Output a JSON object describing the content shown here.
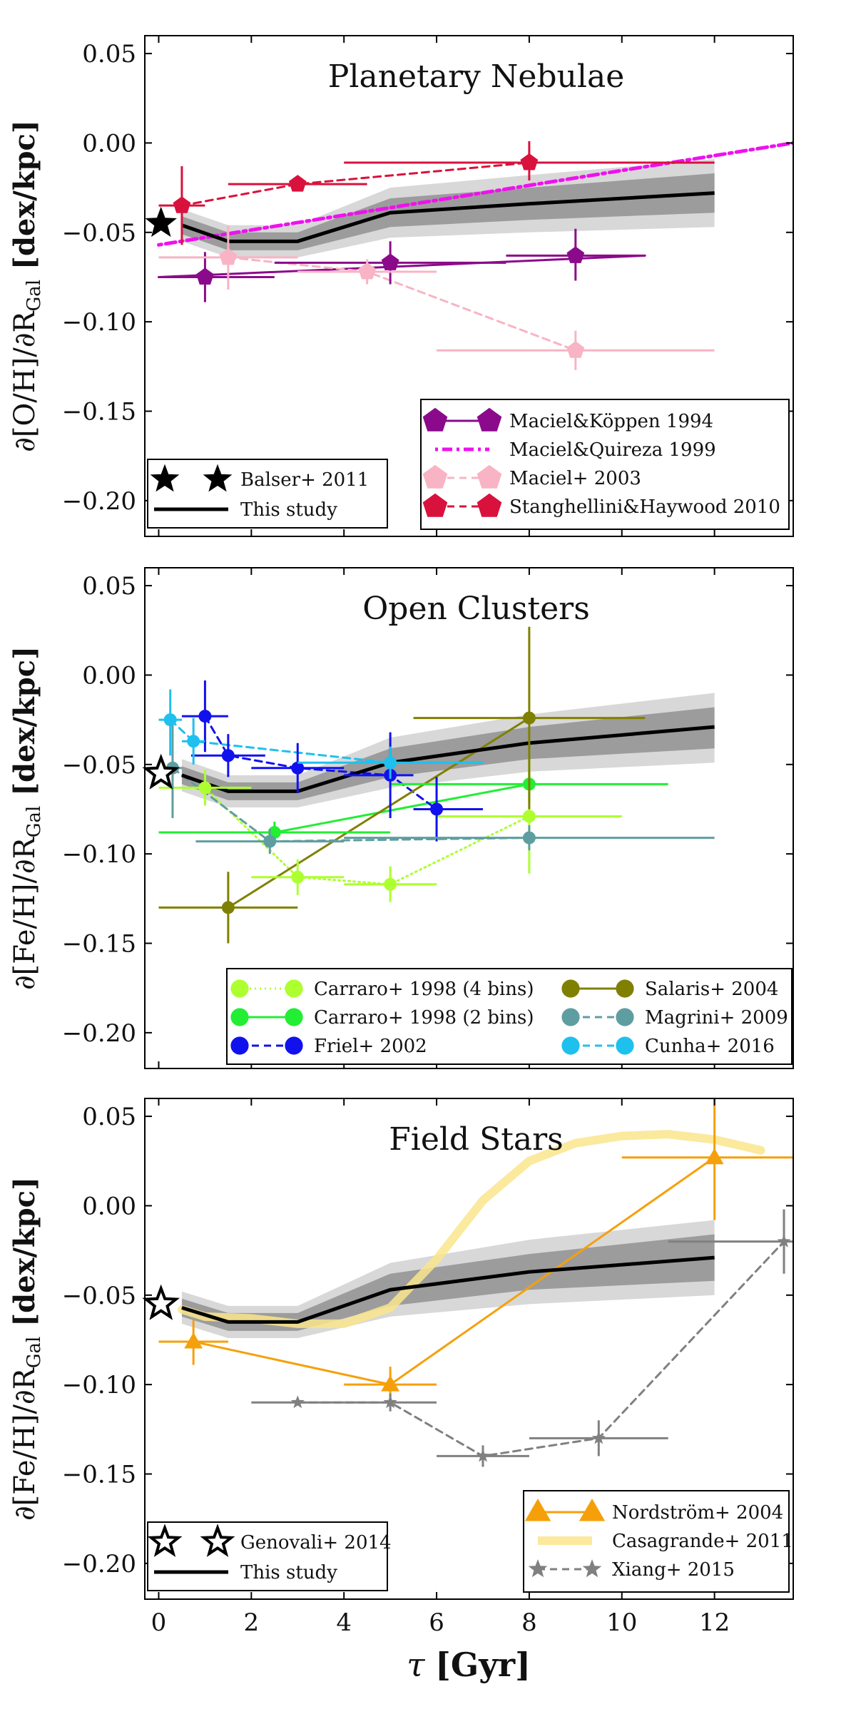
{
  "xaxis": {
    "label_sym": "τ",
    "label_text": "[Gyr]",
    "range": [
      -0.3,
      13.7
    ],
    "ticks": [
      0,
      2,
      4,
      6,
      8,
      10,
      12
    ],
    "tick_labels": [
      "0",
      "2",
      "4",
      "6",
      "8",
      "10",
      "12"
    ]
  },
  "chart_data": [
    {
      "type": "line",
      "title": "Planetary Nebulae",
      "ylabel_main": "∂[O/H]/∂R",
      "ylabel_sub": "Gal",
      "ylabel_unit": "[dex/kpc]",
      "ylim": [
        -0.22,
        0.06
      ],
      "yticks": [
        0.05,
        0.0,
        -0.05,
        -0.1,
        -0.15,
        -0.2
      ],
      "ytick_labels": [
        "0.05",
        "0.00",
        "−0.05",
        "−0.10",
        "−0.15",
        "−0.20"
      ],
      "band": {
        "x": [
          0.5,
          1.5,
          3,
          5,
          8,
          12
        ],
        "median": [
          -0.046,
          -0.055,
          -0.055,
          -0.039,
          -0.034,
          -0.028
        ],
        "inner": [
          [
            -0.051,
            -0.041
          ],
          [
            -0.06,
            -0.05
          ],
          [
            -0.06,
            -0.05
          ],
          [
            -0.047,
            -0.031
          ],
          [
            -0.043,
            -0.025
          ],
          [
            -0.039,
            -0.017
          ]
        ],
        "outer": [
          [
            -0.055,
            -0.037
          ],
          [
            -0.064,
            -0.046
          ],
          [
            -0.064,
            -0.046
          ],
          [
            -0.053,
            -0.025
          ],
          [
            -0.05,
            -0.018
          ],
          [
            -0.047,
            -0.009
          ]
        ]
      },
      "star": {
        "x": 0.05,
        "y": -0.045,
        "filled": true
      },
      "series": [
        {
          "name": "Maciel&Köppen 1994",
          "color": "#8b0a8b",
          "dash": "none",
          "width": 3,
          "marker": "pentagon",
          "points": [
            {
              "x": 1,
              "y": -0.075,
              "xl": 0,
              "xh": 2.5,
              "yl": -0.089,
              "yh": -0.061
            },
            {
              "x": 5,
              "y": -0.067,
              "xl": 2.5,
              "xh": 7.5,
              "yl": -0.079,
              "yh": -0.055
            },
            {
              "x": 9,
              "y": -0.063,
              "xl": 7.5,
              "xh": 10.5,
              "yl": -0.077,
              "yh": -0.048
            }
          ],
          "line": [
            [
              0,
              -0.075
            ],
            [
              10.5,
              -0.063
            ]
          ]
        },
        {
          "name": "Maciel&Quireza 1999",
          "color": "#ee11ee",
          "dash": "4,6,14,6",
          "width": 5,
          "marker": "none",
          "line": [
            [
              0,
              -0.057
            ],
            [
              13.7,
              0.0
            ]
          ]
        },
        {
          "name": "Maciel+ 2003",
          "color": "#f8b4c4",
          "dash": "10,7",
          "width": 3,
          "marker": "pentagon",
          "points": [
            {
              "x": 1.5,
              "y": -0.064,
              "xl": 0,
              "xh": 3,
              "yl": -0.082,
              "yh": -0.046
            },
            {
              "x": 4.5,
              "y": -0.072,
              "xl": 3,
              "xh": 6,
              "yl": -0.079,
              "yh": -0.065
            },
            {
              "x": 9,
              "y": -0.116,
              "xl": 6,
              "xh": 12,
              "yl": -0.127,
              "yh": -0.105
            }
          ],
          "line": [
            [
              1.5,
              -0.064
            ],
            [
              4.5,
              -0.072
            ],
            [
              9,
              -0.116
            ]
          ]
        },
        {
          "name": "Stanghellini&Haywood 2010",
          "color": "#d8123d",
          "dash": "10,7",
          "width": 3,
          "marker": "pentagon",
          "points": [
            {
              "x": 0.5,
              "y": -0.035,
              "xl": 0,
              "xh": 1,
              "yl": -0.057,
              "yh": -0.013
            },
            {
              "x": 3,
              "y": -0.023,
              "xl": 1.5,
              "xh": 4.5,
              "yl": -0.027,
              "yh": -0.019
            },
            {
              "x": 8,
              "y": -0.011,
              "xl": 4,
              "xh": 12,
              "yl": -0.021,
              "yh": 0.001
            }
          ],
          "line": [
            [
              0.5,
              -0.035
            ],
            [
              3,
              -0.023
            ],
            [
              8,
              -0.011
            ]
          ]
        }
      ],
      "legend_left": [
        {
          "label": "Balser+ 2011",
          "kind": "star-filled"
        },
        {
          "label": "This study",
          "kind": "line-black"
        }
      ],
      "legend_right": [
        {
          "label": "Maciel&Köppen 1994",
          "series": 0
        },
        {
          "label": "Maciel&Quireza 1999",
          "series": 1
        },
        {
          "label": "Maciel+ 2003",
          "series": 2
        },
        {
          "label": "Stanghellini&Haywood 2010",
          "series": 3
        }
      ]
    },
    {
      "type": "line",
      "title": "Open Clusters",
      "ylabel_main": "∂[Fe/H]/∂R",
      "ylabel_sub": "Gal",
      "ylabel_unit": "[dex/kpc]",
      "ylim": [
        -0.22,
        0.06
      ],
      "yticks": [
        0.05,
        0.0,
        -0.05,
        -0.1,
        -0.15,
        -0.2
      ],
      "ytick_labels": [
        "0.05",
        "0.00",
        "−0.05",
        "−0.10",
        "−0.15",
        "−0.20"
      ],
      "band": {
        "x": [
          0.5,
          1.5,
          3,
          5,
          8,
          12
        ],
        "median": [
          -0.056,
          -0.065,
          -0.065,
          -0.049,
          -0.038,
          -0.029
        ],
        "inner": [
          [
            -0.061,
            -0.051
          ],
          [
            -0.07,
            -0.06
          ],
          [
            -0.07,
            -0.06
          ],
          [
            -0.057,
            -0.041
          ],
          [
            -0.047,
            -0.029
          ],
          [
            -0.041,
            -0.018
          ]
        ],
        "outer": [
          [
            -0.065,
            -0.047
          ],
          [
            -0.074,
            -0.056
          ],
          [
            -0.074,
            -0.056
          ],
          [
            -0.063,
            -0.035
          ],
          [
            -0.054,
            -0.022
          ],
          [
            -0.049,
            -0.01
          ]
        ]
      },
      "star": {
        "x": 0.05,
        "y": -0.055,
        "filled": false
      },
      "series": [
        {
          "name": "Carraro+ 1998 (4 bins)",
          "color": "#adff2f",
          "dash": "2,5",
          "width": 3,
          "marker": "circle",
          "points": [
            {
              "x": 1,
              "y": -0.063,
              "xl": 0,
              "xh": 2,
              "yl": -0.073,
              "yh": -0.053
            },
            {
              "x": 3,
              "y": -0.113,
              "xl": 2,
              "xh": 4,
              "yl": -0.123,
              "yh": -0.103
            },
            {
              "x": 5,
              "y": -0.117,
              "xl": 4,
              "xh": 6,
              "yl": -0.127,
              "yh": -0.107
            },
            {
              "x": 8,
              "y": -0.079,
              "xl": 6,
              "xh": 10,
              "yl": -0.111,
              "yh": -0.047
            }
          ],
          "line": [
            [
              1,
              -0.063
            ],
            [
              3,
              -0.113
            ],
            [
              5,
              -0.117
            ],
            [
              8,
              -0.079
            ]
          ]
        },
        {
          "name": "Carraro+ 1998 (2 bins)",
          "color": "#22ee33",
          "dash": "none",
          "width": 3,
          "marker": "circle",
          "points": [
            {
              "x": 2.5,
              "y": -0.088,
              "xl": 0,
              "xh": 5,
              "yl": -0.094,
              "yh": -0.082
            },
            {
              "x": 8,
              "y": -0.061,
              "xl": 5,
              "xh": 11,
              "yl": -0.071,
              "yh": -0.051
            }
          ],
          "line": [
            [
              2.5,
              -0.088
            ],
            [
              8,
              -0.061
            ]
          ]
        },
        {
          "name": "Friel+ 2002",
          "color": "#1111ee",
          "dash": "10,7",
          "width": 3,
          "marker": "circle",
          "points": [
            {
              "x": 1,
              "y": -0.023,
              "xl": 0.5,
              "xh": 1.5,
              "yl": -0.043,
              "yh": -0.003
            },
            {
              "x": 1.5,
              "y": -0.045,
              "xl": 0.7,
              "xh": 2.3,
              "yl": -0.057,
              "yh": -0.033
            },
            {
              "x": 3,
              "y": -0.052,
              "xl": 2,
              "xh": 4,
              "yl": -0.066,
              "yh": -0.038
            },
            {
              "x": 5,
              "y": -0.056,
              "xl": 4,
              "xh": 5.5,
              "yl": -0.08,
              "yh": -0.032
            },
            {
              "x": 6,
              "y": -0.075,
              "xl": 5.5,
              "xh": 7,
              "yl": -0.093,
              "yh": -0.057
            }
          ],
          "line": [
            [
              1,
              -0.023
            ],
            [
              1.5,
              -0.045
            ],
            [
              3,
              -0.052
            ],
            [
              5,
              -0.056
            ],
            [
              6,
              -0.075
            ]
          ]
        },
        {
          "name": "Salaris+ 2004",
          "color": "#808000",
          "dash": "none",
          "width": 3,
          "marker": "circle",
          "points": [
            {
              "x": 1.5,
              "y": -0.13,
              "xl": 0,
              "xh": 3,
              "yl": -0.15,
              "yh": -0.11
            },
            {
              "x": 8,
              "y": -0.024,
              "xl": 5.5,
              "xh": 10.5,
              "yl": -0.075,
              "yh": 0.027
            }
          ],
          "line": [
            [
              1.5,
              -0.13
            ],
            [
              8,
              -0.024
            ]
          ]
        },
        {
          "name": "Magrini+ 2009",
          "color": "#5f9ea0",
          "dash": "10,7",
          "width": 3,
          "marker": "circle",
          "points": [
            {
              "x": 0.3,
              "y": -0.052,
              "xl": 0.1,
              "xh": 0.5,
              "yl": -0.08,
              "yh": -0.024
            },
            {
              "x": 2.4,
              "y": -0.093,
              "xl": 0.8,
              "xh": 4,
              "yl": -0.1,
              "yh": -0.086
            },
            {
              "x": 8,
              "y": -0.091,
              "xl": 4,
              "xh": 12,
              "yl": -0.098,
              "yh": -0.084
            }
          ],
          "line": [
            [
              0.3,
              -0.052
            ],
            [
              2.4,
              -0.093
            ],
            [
              8,
              -0.091
            ]
          ]
        },
        {
          "name": "Cunha+ 2016",
          "color": "#1ec0ee",
          "dash": "10,7",
          "width": 3,
          "marker": "circle",
          "points": [
            {
              "x": 0.25,
              "y": -0.025,
              "xl": 0,
              "xh": 0.5,
              "yl": -0.045,
              "yh": -0.008
            },
            {
              "x": 0.75,
              "y": -0.037,
              "xl": 0.5,
              "xh": 1,
              "yl": -0.05,
              "yh": -0.024
            },
            {
              "x": 5,
              "y": -0.049,
              "xl": 3,
              "xh": 7,
              "yl": -0.058,
              "yh": -0.04
            }
          ],
          "line": [
            [
              0.25,
              -0.025
            ],
            [
              0.75,
              -0.037
            ],
            [
              5,
              -0.049
            ]
          ]
        }
      ],
      "legend_grid": [
        {
          "label": "Carraro+ 1998 (4 bins)",
          "series": 0
        },
        {
          "label": "Salaris+ 2004",
          "series": 3
        },
        {
          "label": "Carraro+ 1998 (2 bins)",
          "series": 1
        },
        {
          "label": "Magrini+ 2009",
          "series": 4
        },
        {
          "label": "Friel+ 2002",
          "series": 2
        },
        {
          "label": "Cunha+ 2016",
          "series": 5
        }
      ]
    },
    {
      "type": "line",
      "title": "Field Stars",
      "ylabel_main": "∂[Fe/H]/∂R",
      "ylabel_sub": "Gal",
      "ylabel_unit": "[dex/kpc]",
      "ylim": [
        -0.22,
        0.06
      ],
      "yticks": [
        0.05,
        0.0,
        -0.05,
        -0.1,
        -0.15,
        -0.2
      ],
      "ytick_labels": [
        "0.05",
        "0.00",
        "−0.05",
        "−0.10",
        "−0.15",
        "−0.20"
      ],
      "band": {
        "x": [
          0.5,
          1.5,
          3,
          5,
          8,
          12
        ],
        "median": [
          -0.057,
          -0.065,
          -0.065,
          -0.047,
          -0.037,
          -0.029
        ],
        "inner": [
          [
            -0.062,
            -0.052
          ],
          [
            -0.07,
            -0.06
          ],
          [
            -0.07,
            -0.06
          ],
          [
            -0.056,
            -0.038
          ],
          [
            -0.047,
            -0.027
          ],
          [
            -0.042,
            -0.016
          ]
        ],
        "outer": [
          [
            -0.066,
            -0.048
          ],
          [
            -0.074,
            -0.056
          ],
          [
            -0.074,
            -0.056
          ],
          [
            -0.062,
            -0.032
          ],
          [
            -0.055,
            -0.019
          ],
          [
            -0.05,
            -0.008
          ]
        ]
      },
      "star": {
        "x": 0.05,
        "y": -0.055,
        "filled": false
      },
      "series": [
        {
          "name": "Nordström+ 2004",
          "color": "#f5a00a",
          "dash": "none",
          "width": 3,
          "marker": "triangle",
          "points": [
            {
              "x": 0.75,
              "y": -0.076,
              "xl": 0,
              "xh": 1.5,
              "yl": -0.089,
              "yh": -0.064
            },
            {
              "x": 5,
              "y": -0.1,
              "xl": 4,
              "xh": 6,
              "yl": -0.11,
              "yh": -0.09
            },
            {
              "x": 12,
              "y": 0.027,
              "xl": 10,
              "xh": 13.7,
              "yl": -0.008,
              "yh": 0.062
            }
          ],
          "line": [
            [
              0.75,
              -0.076
            ],
            [
              5,
              -0.1
            ],
            [
              12,
              0.027
            ]
          ]
        },
        {
          "name": "Casagrande+ 2011",
          "color": "#fae58c",
          "dash": "none",
          "width": 12,
          "marker": "none",
          "line": [
            [
              0.5,
              -0.058
            ],
            [
              1,
              -0.062
            ],
            [
              2,
              -0.063
            ],
            [
              3,
              -0.066
            ],
            [
              4,
              -0.066
            ],
            [
              5,
              -0.057
            ],
            [
              6,
              -0.03
            ],
            [
              7,
              0.003
            ],
            [
              8,
              0.025
            ],
            [
              9,
              0.035
            ],
            [
              10,
              0.039
            ],
            [
              11,
              0.04
            ],
            [
              12,
              0.037
            ],
            [
              13,
              0.031
            ]
          ]
        },
        {
          "name": "Xiang+ 2015",
          "color": "#808080",
          "dash": "10,7",
          "width": 3,
          "marker": "star",
          "points": [
            {
              "x": 3,
              "y": -0.11,
              "xl": 2,
              "xh": 4,
              "yl": -0.11,
              "yh": -0.11
            },
            {
              "x": 5,
              "y": -0.11,
              "xl": 4,
              "xh": 6,
              "yl": -0.115,
              "yh": -0.105
            },
            {
              "x": 7,
              "y": -0.14,
              "xl": 6,
              "xh": 8,
              "yl": -0.146,
              "yh": -0.134
            },
            {
              "x": 9.5,
              "y": -0.13,
              "xl": 8,
              "xh": 11,
              "yl": -0.14,
              "yh": -0.12
            },
            {
              "x": 13.5,
              "y": -0.02,
              "xl": 11,
              "xh": 13.7,
              "yl": -0.038,
              "yh": -0.002
            }
          ],
          "line": [
            [
              3,
              -0.11
            ],
            [
              5,
              -0.11
            ],
            [
              7,
              -0.14
            ],
            [
              9.5,
              -0.13
            ],
            [
              13.5,
              -0.02
            ]
          ]
        }
      ],
      "legend_left": [
        {
          "label": "Genovali+ 2014",
          "kind": "star-open"
        },
        {
          "label": "This study",
          "kind": "line-black"
        }
      ],
      "legend_right": [
        {
          "label": "Nordström+ 2004",
          "series": 0
        },
        {
          "label": "Casagrande+ 2011",
          "series": 1
        },
        {
          "label": "Xiang+ 2015",
          "series": 2
        }
      ]
    }
  ]
}
